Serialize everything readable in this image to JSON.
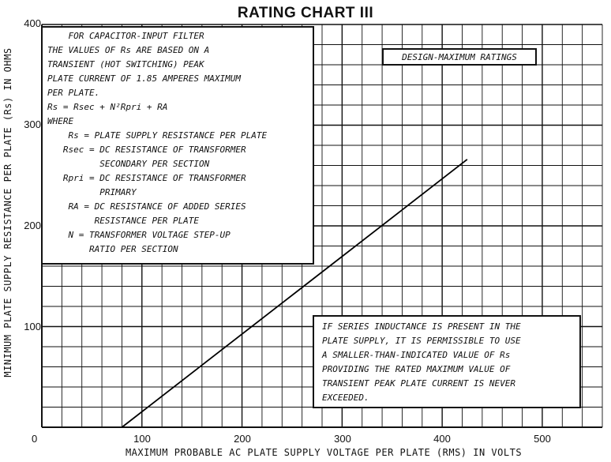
{
  "chart_data": {
    "type": "line",
    "title": "RATING CHART III",
    "xlabel": "MAXIMUM PROBABLE AC PLATE SUPPLY VOLTAGE PER PLATE (RMS) IN VOLTS",
    "ylabel": "MINIMUM PLATE SUPPLY RESISTANCE PER PLATE (Rs) IN OHMS",
    "xlim": [
      0,
      560
    ],
    "ylim": [
      0,
      400
    ],
    "x_ticks": [
      "100",
      "200",
      "300",
      "400",
      "500"
    ],
    "y_ticks": [
      "100",
      "200",
      "300",
      "400"
    ],
    "origin_label": "0",
    "grid": true,
    "grid_step_x": 20,
    "grid_step_y": 20,
    "series": [
      {
        "x": [
          80,
          425
        ],
        "y": [
          0,
          266
        ]
      }
    ],
    "annotations": {
      "design_box": "DESIGN-MAXIMUM RATINGS",
      "filter_notes": [
        "    FOR CAPACITOR-INPUT FILTER",
        "THE VALUES OF Rs ARE BASED ON A",
        "TRANSIENT (HOT SWITCHING) PEAK",
        "PLATE CURRENT OF 1.85 AMPERES MAXIMUM",
        "PER PLATE.",
        "Rs = Rsec + N²Rpri + RA",
        "WHERE",
        "    Rs = PLATE SUPPLY RESISTANCE PER PLATE",
        "   Rsec = DC RESISTANCE OF TRANSFORMER",
        "          SECONDARY PER SECTION",
        "   Rpri = DC RESISTANCE OF TRANSFORMER",
        "          PRIMARY",
        "    RA = DC RESISTANCE OF ADDED SERIES",
        "         RESISTANCE PER PLATE",
        "    N = TRANSFORMER VOLTAGE STEP-UP",
        "        RATIO PER SECTION"
      ],
      "inductance_note": [
        "IF SERIES INDUCTANCE IS PRESENT IN THE",
        "PLATE SUPPLY, IT IS PERMISSIBLE TO USE",
        "A SMALLER-THAN-INDICATED VALUE OF Rs",
        "PROVIDING THE RATED MAXIMUM VALUE OF",
        "TRANSIENT PEAK PLATE CURRENT IS NEVER",
        "EXCEEDED."
      ]
    }
  }
}
